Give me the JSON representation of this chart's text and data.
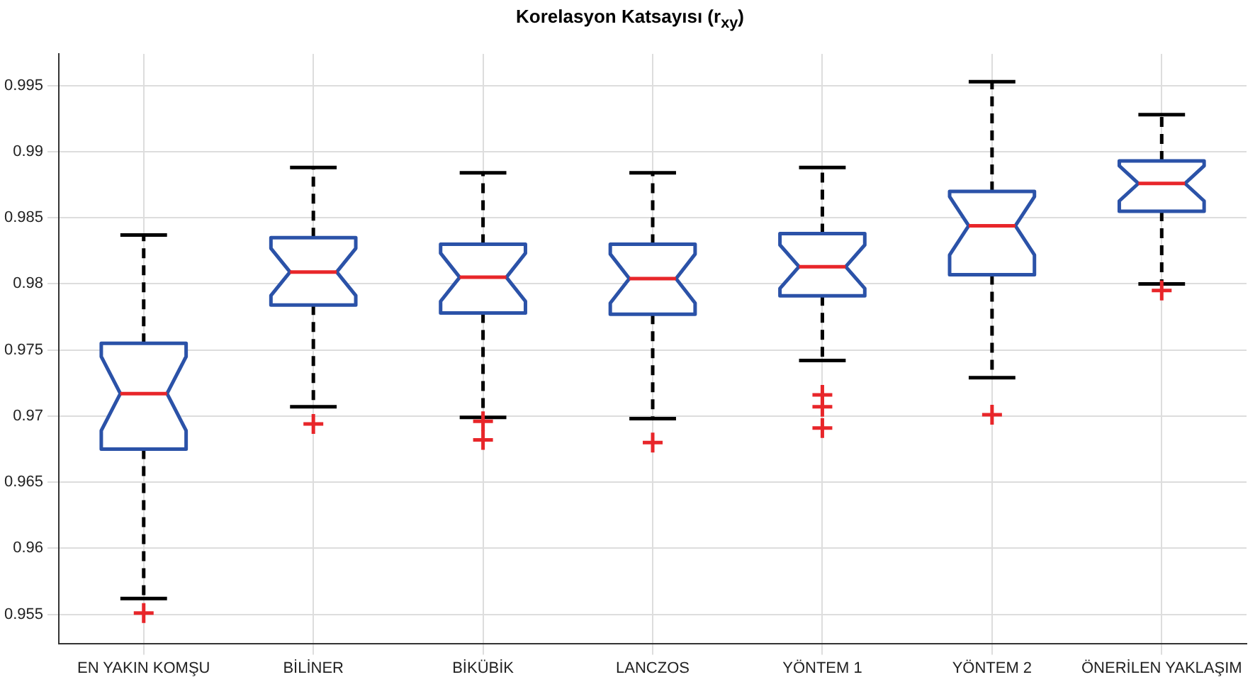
{
  "chart_data": {
    "type": "box",
    "title": "Korelasyon Katsayısı (r$_{xy}$)",
    "categories": [
      "EN YAKIN KOMŞU",
      "BİLİNER",
      "BİKÜBİK",
      "LANCZOS",
      "YÖNTEM 1",
      "YÖNTEM 2",
      "ÖNERİLEN YAKLAŞIM"
    ],
    "series": [
      {
        "color": "#2b52a8",
        "boxes": [
          {
            "low": 0.9562,
            "q1": 0.9675,
            "median": 0.9717,
            "q3": 0.9755,
            "high": 0.9837,
            "outliers": [
              0.9551
            ]
          },
          {
            "low": 0.9707,
            "q1": 0.9784,
            "median": 0.9809,
            "q3": 0.9835,
            "high": 0.9888,
            "outliers": [
              0.9694
            ]
          },
          {
            "low": 0.9699,
            "q1": 0.9778,
            "median": 0.9805,
            "q3": 0.983,
            "high": 0.9884,
            "outliers": [
              0.9696,
              0.9682
            ]
          },
          {
            "low": 0.9698,
            "q1": 0.9777,
            "median": 0.9804,
            "q3": 0.983,
            "high": 0.9884,
            "outliers": [
              0.968
            ]
          },
          {
            "low": 0.9742,
            "q1": 0.9791,
            "median": 0.9813,
            "q3": 0.9838,
            "high": 0.9888,
            "outliers": [
              0.9716,
              0.9707,
              0.9691
            ]
          },
          {
            "low": 0.9729,
            "q1": 0.9807,
            "median": 0.9844,
            "q3": 0.987,
            "high": 0.9953,
            "outliers": [
              0.9701
            ]
          },
          {
            "low": 0.98,
            "q1": 0.9855,
            "median": 0.9876,
            "q3": 0.9893,
            "high": 0.9928,
            "outliers": [
              0.9795
            ]
          }
        ]
      }
    ],
    "ylim": [
      0.9528,
      0.9974
    ],
    "yticks": [
      0.955,
      0.96,
      0.965,
      0.97,
      0.975,
      0.98,
      0.985,
      0.99,
      0.995
    ],
    "grid": true
  }
}
